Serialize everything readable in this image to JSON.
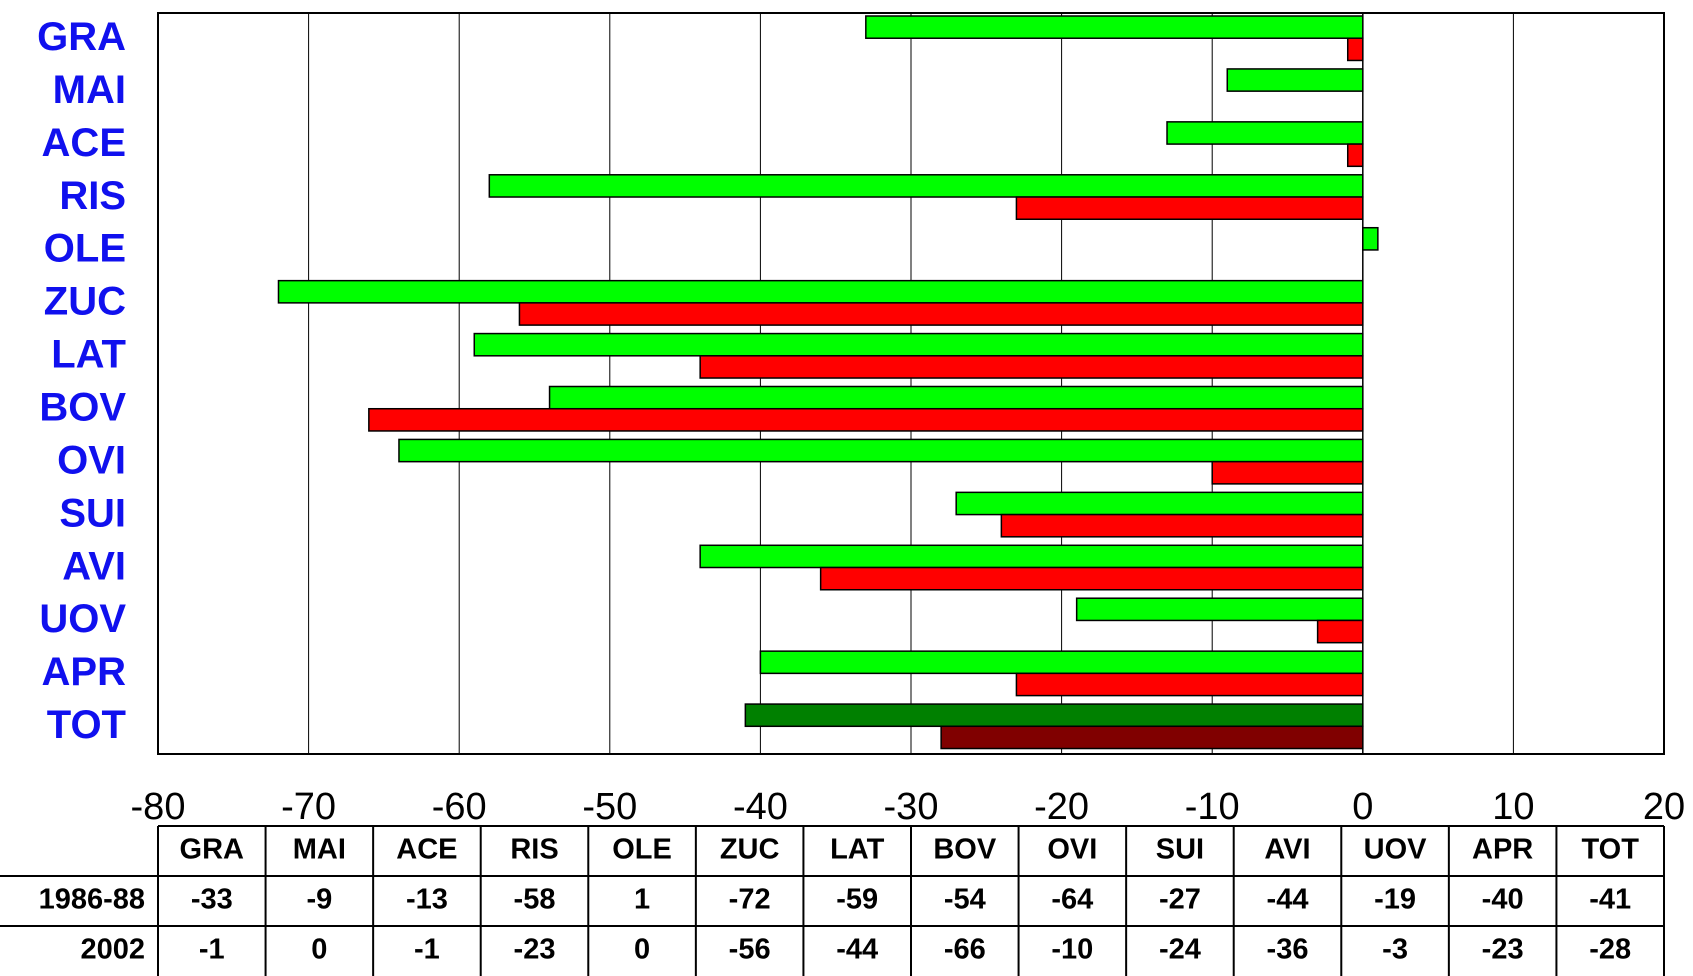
{
  "chart_data": {
    "type": "bar",
    "orientation": "horizontal",
    "categories": [
      "GRA",
      "MAI",
      "ACE",
      "RIS",
      "OLE",
      "ZUC",
      "LAT",
      "BOV",
      "OVI",
      "SUI",
      "AVI",
      "UOV",
      "APR",
      "TOT"
    ],
    "series": [
      {
        "name": "1986-88",
        "values": [
          -33,
          -9,
          -13,
          -58,
          1,
          -72,
          -59,
          -54,
          -64,
          -27,
          -44,
          -19,
          -40,
          -41
        ],
        "color": "#00ff00",
        "total_color": "#008000"
      },
      {
        "name": "2002",
        "values": [
          -1,
          0,
          -1,
          -23,
          0,
          -56,
          -44,
          -66,
          -10,
          -24,
          -36,
          -3,
          -23,
          -28
        ],
        "color": "#ff0000",
        "total_color": "#800000"
      }
    ],
    "xlim": [
      -80,
      20
    ],
    "x_ticks": [
      "-80",
      "-70",
      "-60",
      "-50",
      "-40",
      "-30",
      "-20",
      "-10",
      "0",
      "10",
      "20"
    ],
    "grid": "vertical",
    "legend": "data-table-below",
    "table": {
      "headers": [
        "GRA",
        "MAI",
        "ACE",
        "RIS",
        "OLE",
        "ZUC",
        "LAT",
        "BOV",
        "OVI",
        "SUI",
        "AVI",
        "UOV",
        "APR",
        "TOT"
      ],
      "rows": [
        {
          "label": "1986-88",
          "cells": [
            "-33",
            "-9",
            "-13",
            "-58",
            "1",
            "-72",
            "-59",
            "-54",
            "-64",
            "-27",
            "-44",
            "-19",
            "-40",
            "-41"
          ]
        },
        {
          "label": "2002",
          "cells": [
            "-1",
            "0",
            "-1",
            "-23",
            "0",
            "-56",
            "-44",
            "-66",
            "-10",
            "-24",
            "-36",
            "-3",
            "-23",
            "-28"
          ]
        }
      ]
    },
    "colors": {
      "category_label": "#1010ee",
      "frame": "#000000",
      "grid": "#000000"
    }
  }
}
